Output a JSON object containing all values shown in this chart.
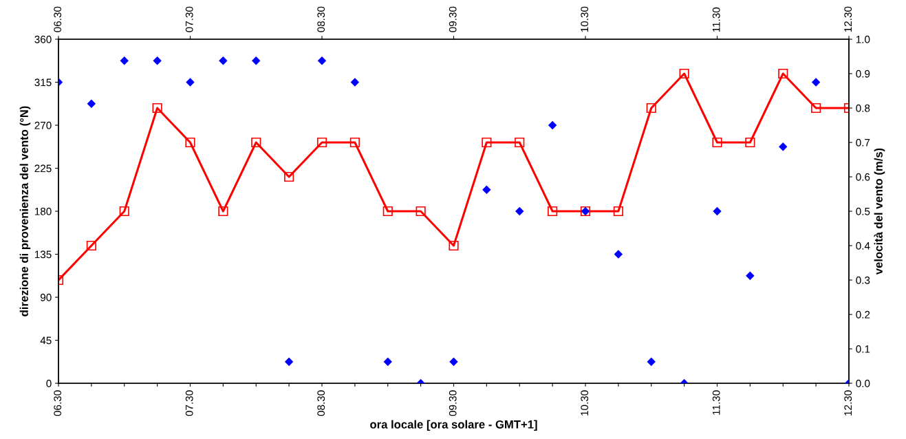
{
  "chart_data": {
    "type": "scatter",
    "xlabel": "ora locale [ora solare - GMT+1]",
    "ylabel": "direzione di provenienza del vento (°N)",
    "y2label": "velocità del vento (m/s)",
    "categories": [
      "06.30",
      null,
      null,
      null,
      "07.30",
      null,
      null,
      null,
      "08.30",
      null,
      null,
      null,
      "09.30",
      null,
      null,
      null,
      "10.30",
      null,
      null,
      null,
      "11.30",
      null,
      null,
      null,
      "12.30"
    ],
    "series": [
      {
        "marker": "diamond",
        "color": "#0000ff",
        "values": [
          315,
          292.5,
          337.5,
          337.5,
          315,
          337.5,
          337.5,
          22.5,
          337.5,
          315,
          22.5,
          0,
          22.5,
          202.5,
          180,
          270,
          180,
          135,
          22.5,
          0,
          180,
          112.5,
          247.5,
          315,
          0
        ]
      },
      {
        "type": "line",
        "axis": "y2",
        "marker": "square",
        "color": "#ff0000",
        "values": [
          0.3,
          0.4,
          0.5,
          0.8,
          0.7,
          0.5,
          0.7,
          0.6,
          0.7,
          0.7,
          0.5,
          0.5,
          0.4,
          0.7,
          0.7,
          0.5,
          0.5,
          0.5,
          0.8,
          0.9,
          0.7,
          0.7,
          0.9,
          0.8,
          0.8
        ]
      }
    ],
    "ylim": [
      0,
      360
    ],
    "yticks": [
      0,
      45,
      90,
      135,
      180,
      225,
      270,
      315,
      360
    ],
    "y2lim": [
      0,
      1.0
    ],
    "y2ticks": [
      {
        "value": 0,
        "label": "0.0"
      },
      {
        "value": 0.1,
        "label": "0.1"
      },
      {
        "value": 0.2,
        "label": "0.2"
      },
      {
        "value": 0.3,
        "label": "0.3"
      },
      {
        "value": 0.4,
        "label": "0.4"
      },
      {
        "value": 0.5,
        "label": "0.5"
      },
      {
        "value": 0.6,
        "label": "0.6"
      },
      {
        "value": 0.7,
        "label": "0.7"
      },
      {
        "value": 0.8,
        "label": "0.8"
      },
      {
        "value": 0.9,
        "label": "0.9"
      },
      {
        "value": 1.0,
        "label": "1.0"
      }
    ],
    "grid": false,
    "legend": false
  }
}
